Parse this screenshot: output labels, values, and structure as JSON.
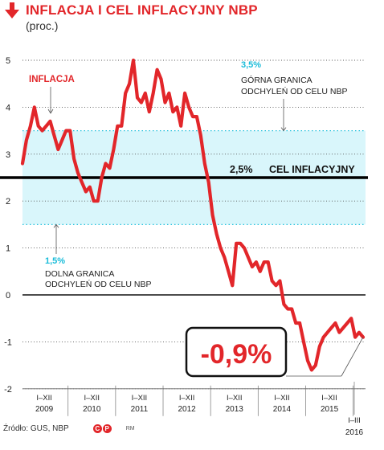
{
  "header": {
    "title": "INFLACJA I CEL INFLACYJNY NBP",
    "subtitle": "(proc.)"
  },
  "footer": {
    "source": "Źródło: GUS, NBP",
    "credit": "RM",
    "icons": [
      "copyright-icon",
      "photo-copyright-icon"
    ]
  },
  "colors": {
    "inflation_line": "#e2262a",
    "tolerance_band": "#d9f6fb",
    "band_edge": "#2ec4de",
    "target_line": "#000000",
    "title": "#e2262a"
  },
  "chart_data": {
    "type": "line",
    "y_ticks": [
      "5",
      "4",
      "3",
      "2",
      "1",
      "0",
      "-1",
      "-2"
    ],
    "ylim": [
      -2,
      5
    ],
    "x_tick_groups": [
      {
        "range": "I–XII",
        "year": "2009"
      },
      {
        "range": "I–XII",
        "year": "2010"
      },
      {
        "range": "I–XII",
        "year": "2011"
      },
      {
        "range": "I–XII",
        "year": "2012"
      },
      {
        "range": "I–XII",
        "year": "2013"
      },
      {
        "range": "I–XII",
        "year": "2014"
      },
      {
        "range": "I–XII",
        "year": "2015"
      },
      {
        "range": "I–III",
        "year": "2016"
      }
    ],
    "target": {
      "value": 2.5,
      "label_value": "2,5%",
      "label_text": "CEL INFLACYJNY"
    },
    "upper_band": {
      "value": 3.5,
      "label_value": "3,5%",
      "label_line1": "GÓRNA GRANICA",
      "label_line2": "ODCHYLEŃ OD CELU NBP"
    },
    "lower_band": {
      "value": 1.5,
      "label_value": "1,5%",
      "label_line1": "DOLNA GRANICA",
      "label_line2": "ODCHYLEŃ OD CELU NBP"
    },
    "series": [
      {
        "name": "INFLACJA",
        "start": "2009-01",
        "values": [
          2.8,
          3.3,
          3.6,
          4.0,
          3.6,
          3.5,
          3.6,
          3.7,
          3.4,
          3.1,
          3.3,
          3.5,
          3.5,
          2.9,
          2.6,
          2.4,
          2.2,
          2.3,
          2.0,
          2.0,
          2.5,
          2.8,
          2.7,
          3.1,
          3.6,
          3.6,
          4.3,
          4.5,
          5.0,
          4.2,
          4.1,
          4.3,
          3.9,
          4.3,
          4.8,
          4.6,
          4.1,
          4.3,
          3.9,
          4.0,
          3.6,
          4.3,
          4.0,
          3.8,
          3.8,
          3.4,
          2.8,
          2.4,
          1.7,
          1.3,
          1.0,
          0.8,
          0.5,
          0.2,
          1.1,
          1.1,
          1.0,
          0.8,
          0.6,
          0.7,
          0.5,
          0.7,
          0.7,
          0.3,
          0.2,
          0.3,
          -0.2,
          -0.3,
          -0.3,
          -0.6,
          -0.6,
          -1.0,
          -1.4,
          -1.6,
          -1.5,
          -1.1,
          -0.9,
          -0.8,
          -0.7,
          -0.6,
          -0.8,
          -0.7,
          -0.6,
          -0.5,
          -0.9,
          -0.8,
          -0.9
        ]
      }
    ],
    "callout": "-0,9%"
  }
}
